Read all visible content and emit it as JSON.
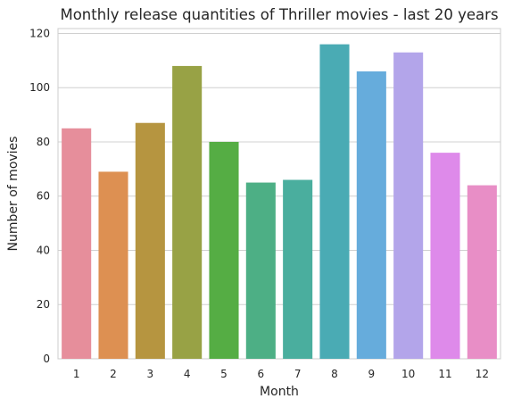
{
  "chart_data": {
    "type": "bar",
    "title": "Monthly release quantities of Thriller movies - last 20 years",
    "xlabel": "Month",
    "ylabel": "Number of movies",
    "categories": [
      "1",
      "2",
      "3",
      "4",
      "5",
      "6",
      "7",
      "8",
      "9",
      "10",
      "11",
      "12"
    ],
    "values": [
      85,
      69,
      87,
      108,
      80,
      65,
      66,
      116,
      106,
      113,
      76,
      64
    ],
    "ylim": [
      0,
      121.8
    ],
    "yticks": [
      "0",
      "20",
      "40",
      "60",
      "80",
      "100",
      "120"
    ],
    "grid": "horizontal",
    "colors": [
      "#e68e9b",
      "#dd9052",
      "#b69540",
      "#98a245",
      "#55ad44",
      "#4daf85",
      "#4aae9e",
      "#4aabb4",
      "#66acdc",
      "#b3a5ea",
      "#de8aea",
      "#e88ec6"
    ]
  }
}
